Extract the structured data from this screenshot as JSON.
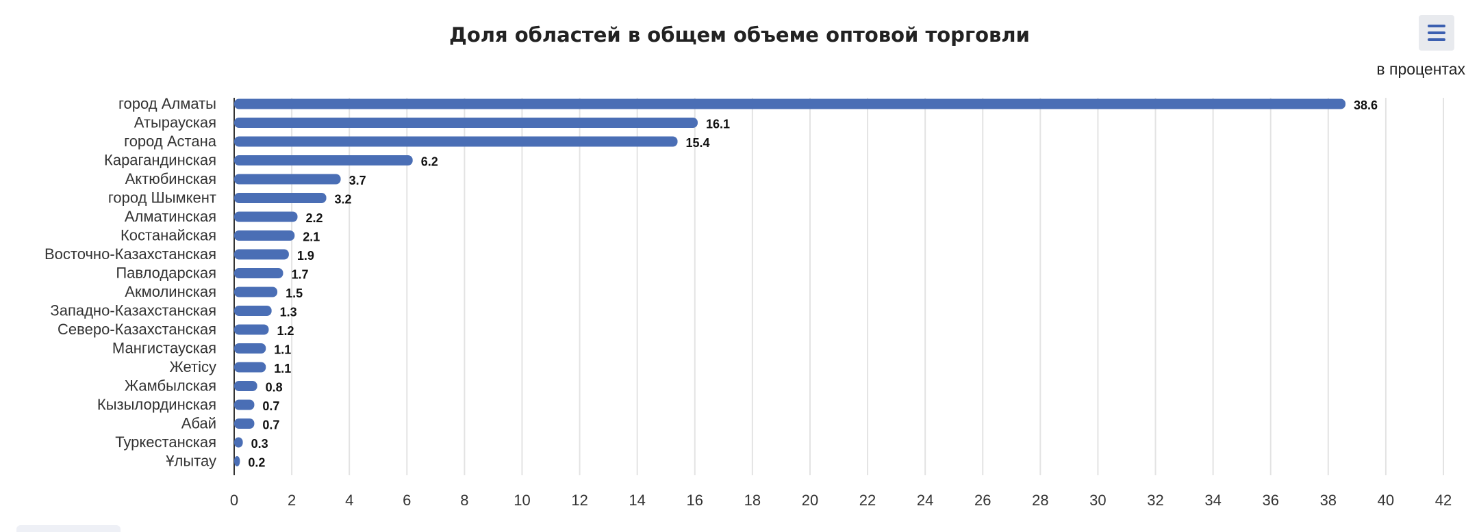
{
  "chart_data": {
    "type": "bar",
    "orientation": "horizontal",
    "title": "Доля областей в общем объеме оптовой торговли",
    "subtitle": "в процентах",
    "categories": [
      "город Алматы",
      "Атырауская",
      "город Астана",
      "Карагандинская",
      "Актюбинская",
      "город Шымкент",
      "Алматинская",
      "Костанайская",
      "Восточно-Казахстанская",
      "Павлодарская",
      "Акмолинская",
      "Западно-Казахстанская",
      "Северо-Казахстанская",
      "Мангистауская",
      "Жетісу",
      "Жамбылская",
      "Кызылординская",
      "Абай",
      "Туркестанская",
      "Ұлытау"
    ],
    "values": [
      38.6,
      16.1,
      15.4,
      6.2,
      3.7,
      3.2,
      2.2,
      2.1,
      1.9,
      1.7,
      1.5,
      1.3,
      1.2,
      1.1,
      1.1,
      0.8,
      0.7,
      0.7,
      0.3,
      0.2
    ],
    "xlim": [
      0,
      42
    ],
    "ticks": [
      0,
      2,
      4,
      6,
      8,
      10,
      12,
      14,
      16,
      18,
      20,
      22,
      24,
      26,
      28,
      30,
      32,
      34,
      36,
      38,
      40,
      42
    ],
    "grid": true,
    "data_labels": true,
    "bar_color": "#4a6eb5"
  },
  "menu": {
    "icon": "hamburger-menu-icon",
    "color": "#3b5fb0"
  }
}
